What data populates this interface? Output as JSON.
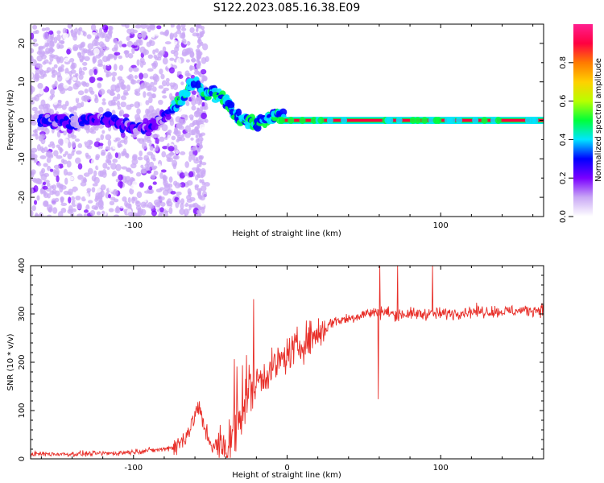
{
  "title": "S122.2023.085.16.38.E09",
  "chart_data": [
    {
      "type": "heatmap",
      "xlabel": "Height of straight line (km)",
      "ylabel": "Frequency (Hz)",
      "xlim": [
        -167,
        167
      ],
      "ylim": [
        -25,
        25
      ],
      "x_ticks": [
        -100,
        0,
        100
      ],
      "x_tick_labels": [
        "-100",
        "",
        "100"
      ],
      "y_ticks": [
        -20,
        -10,
        0,
        10,
        20
      ],
      "y_tick_labels": [
        "-20",
        "-10",
        "0",
        "10",
        "20"
      ],
      "ridge": {
        "x": [
          -160,
          -150,
          -140,
          -130,
          -120,
          -110,
          -100,
          -90,
          -80,
          -75,
          -70,
          -65,
          -60,
          -55,
          -50,
          -45,
          -40,
          -35,
          -30,
          -25,
          -20,
          -15,
          -10,
          -5,
          0,
          50,
          100,
          166
        ],
        "y": [
          0,
          0,
          -1,
          0,
          1,
          -1,
          -2,
          -2,
          1,
          3,
          5,
          8,
          10,
          7,
          7,
          7,
          5,
          2,
          0,
          0,
          -1,
          0,
          1,
          2,
          0,
          0,
          0,
          0
        ]
      },
      "colorbar": {
        "label": "Normalized spectral amplitude",
        "range": [
          0,
          1
        ],
        "ticks": [
          0.0,
          0.2,
          0.4,
          0.6,
          0.8
        ],
        "tick_labels": [
          "0.0",
          "0.2",
          "0.4",
          "0.6",
          "0.8"
        ],
        "colors": [
          "#ffffff",
          "#c9a8f5",
          "#7a00ff",
          "#0000ff",
          "#00e5ff",
          "#00ff3a",
          "#b8ff00",
          "#ffd000",
          "#ff7a00",
          "#ff0040",
          "#ff1f8f"
        ]
      }
    },
    {
      "type": "line",
      "xlabel": "Height of straight line (km)",
      "ylabel": "SNR (10 * v/v)",
      "xlim": [
        -167,
        167
      ],
      "ylim": [
        0,
        400
      ],
      "x_ticks": [
        -100,
        0,
        100
      ],
      "x_tick_labels": [
        "-100",
        "0",
        "100"
      ],
      "y_ticks": [
        0,
        100,
        200,
        300,
        400
      ],
      "y_tick_labels": [
        "0",
        "100",
        "200",
        "300",
        "400"
      ],
      "color": "#e8302a",
      "x": [
        -167,
        -140,
        -110,
        -80,
        -70,
        -62,
        -58,
        -55,
        -50,
        -45,
        -40,
        -35,
        -30,
        -26,
        -20,
        -15,
        -10,
        -5,
        0,
        10,
        15,
        20,
        25,
        30,
        40,
        50,
        60,
        70,
        80,
        90,
        100,
        120,
        140,
        160,
        166
      ],
      "y": [
        10,
        10,
        12,
        20,
        30,
        70,
        110,
        75,
        35,
        20,
        20,
        55,
        100,
        140,
        160,
        175,
        185,
        200,
        215,
        240,
        250,
        260,
        270,
        285,
        290,
        300,
        305,
        300,
        300,
        300,
        300,
        305,
        305,
        308,
        310
      ]
    }
  ]
}
